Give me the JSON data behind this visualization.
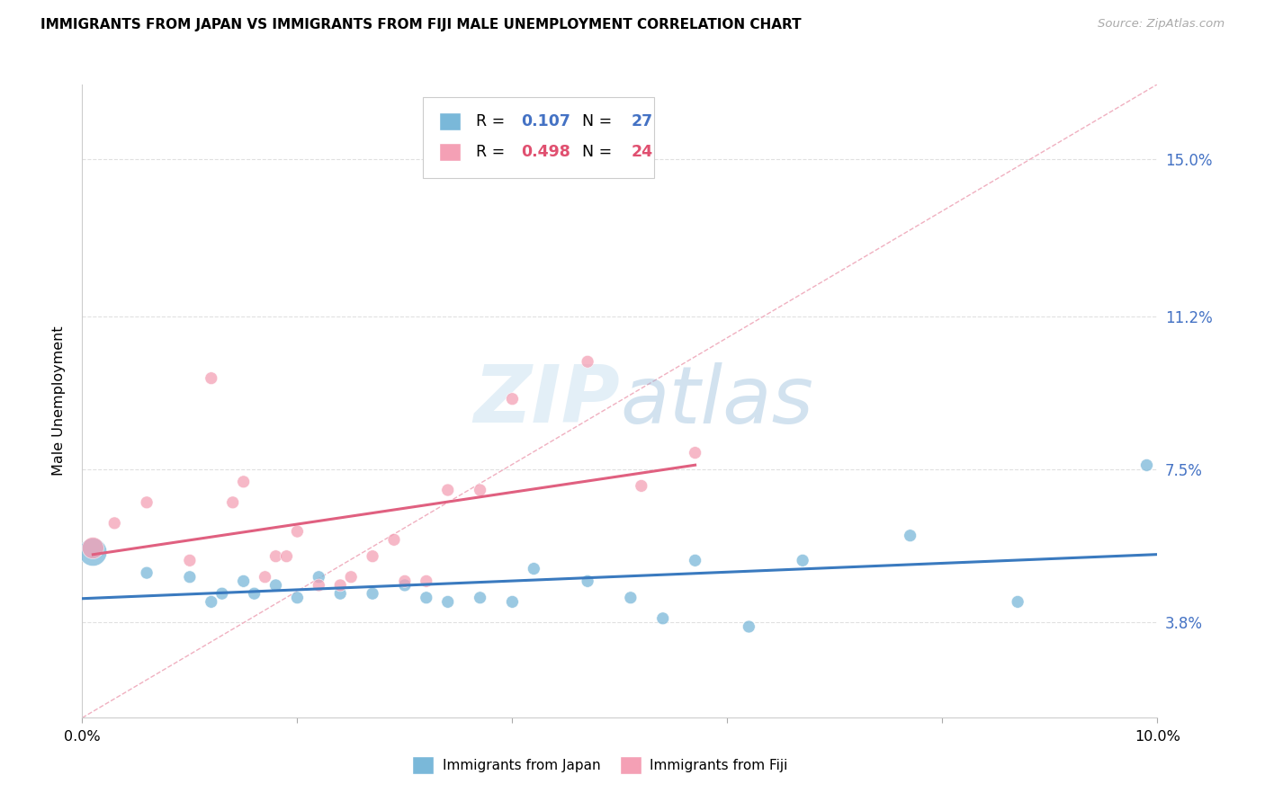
{
  "title": "IMMIGRANTS FROM JAPAN VS IMMIGRANTS FROM FIJI MALE UNEMPLOYMENT CORRELATION CHART",
  "source": "Source: ZipAtlas.com",
  "ylabel": "Male Unemployment",
  "y_ticks": [
    0.038,
    0.075,
    0.112,
    0.15
  ],
  "y_tick_labels": [
    "3.8%",
    "7.5%",
    "11.2%",
    "15.0%"
  ],
  "xlim": [
    0.0,
    0.1
  ],
  "ylim": [
    0.015,
    0.168
  ],
  "japan_color": "#7ab8d9",
  "fiji_color": "#f4a0b5",
  "japan_line_color": "#3a7abf",
  "fiji_line_color": "#e06080",
  "diagonal_color": "#f0b0c0",
  "japan_r": "0.107",
  "japan_n": "27",
  "fiji_r": "0.498",
  "fiji_n": "24",
  "watermark_zip": "ZIP",
  "watermark_atlas": "atlas",
  "japan_x": [
    0.001,
    0.006,
    0.01,
    0.012,
    0.013,
    0.015,
    0.016,
    0.018,
    0.02,
    0.022,
    0.024,
    0.027,
    0.03,
    0.032,
    0.034,
    0.037,
    0.04,
    0.042,
    0.047,
    0.051,
    0.054,
    0.057,
    0.062,
    0.067,
    0.077,
    0.087,
    0.099
  ],
  "japan_y": [
    0.055,
    0.05,
    0.049,
    0.043,
    0.045,
    0.048,
    0.045,
    0.047,
    0.044,
    0.049,
    0.045,
    0.045,
    0.047,
    0.044,
    0.043,
    0.044,
    0.043,
    0.051,
    0.048,
    0.044,
    0.039,
    0.053,
    0.037,
    0.053,
    0.059,
    0.043,
    0.076
  ],
  "japan_sizes": [
    500,
    100,
    100,
    100,
    100,
    100,
    100,
    100,
    100,
    100,
    100,
    100,
    100,
    100,
    100,
    100,
    100,
    100,
    100,
    100,
    100,
    100,
    100,
    100,
    100,
    100,
    100
  ],
  "fiji_x": [
    0.001,
    0.003,
    0.006,
    0.01,
    0.012,
    0.014,
    0.015,
    0.017,
    0.018,
    0.019,
    0.02,
    0.022,
    0.024,
    0.025,
    0.027,
    0.029,
    0.03,
    0.032,
    0.034,
    0.037,
    0.04,
    0.047,
    0.052,
    0.057
  ],
  "fiji_y": [
    0.056,
    0.062,
    0.067,
    0.053,
    0.097,
    0.067,
    0.072,
    0.049,
    0.054,
    0.054,
    0.06,
    0.047,
    0.047,
    0.049,
    0.054,
    0.058,
    0.048,
    0.048,
    0.07,
    0.07,
    0.092,
    0.101,
    0.071,
    0.079
  ],
  "fiji_sizes": [
    300,
    100,
    100,
    100,
    100,
    100,
    100,
    100,
    100,
    100,
    100,
    100,
    100,
    100,
    100,
    100,
    100,
    100,
    100,
    100,
    100,
    100,
    100,
    100
  ]
}
